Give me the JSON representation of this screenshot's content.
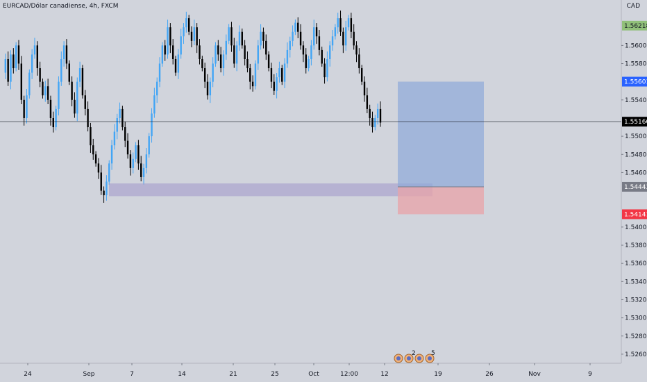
{
  "header": {
    "symbol_label": "EURCAD/Dólar canadiense, 4h, FXCM",
    "currency": "CAD"
  },
  "colors": {
    "background": "#d1d4dc",
    "axis_bg": "#d1d4dc",
    "candle_up_wick": "#42a5f5",
    "candle_down": "#000000",
    "price_line": "#131722",
    "target_box": "#8fa9d9",
    "stop_box": "#e8a3a8",
    "zone_box": "#a7a0cc",
    "label_green": "#91c07a",
    "label_blue": "#2962ff",
    "label_black": "#000000",
    "label_gray": "#787b86",
    "label_red": "#f23645"
  },
  "chart_data": {
    "type": "candlestick",
    "title": "EURCAD/Dólar canadiense, 4h, FXCM",
    "y_axis": {
      "ticks": [
        "1.56000",
        "1.55800",
        "1.55400",
        "1.55000",
        "1.54800",
        "1.54600",
        "1.54000",
        "1.53800",
        "1.53600",
        "1.53400",
        "1.53200",
        "1.53000",
        "1.52800",
        "1.52600"
      ],
      "ylim": [
        1.525,
        1.565
      ]
    },
    "x_axis": {
      "ticks": [
        "24",
        "Sep",
        "7",
        "14",
        "21",
        "25",
        "Oct",
        "12:00",
        "12",
        "19",
        "26",
        "Nov",
        "9"
      ]
    },
    "price_labels": [
      {
        "value": "1.56218",
        "kind": "green"
      },
      {
        "value": "1.55601",
        "kind": "blue"
      },
      {
        "value": "1.55160",
        "kind": "black"
      },
      {
        "value": "1.54443",
        "kind": "gray"
      },
      {
        "value": "1.54141",
        "kind": "red"
      }
    ],
    "current_price": 1.5516,
    "position": {
      "entry": 1.54443,
      "target": 1.55601,
      "stop": 1.54141
    },
    "zone": {
      "top": 1.5448,
      "bottom": 1.5434
    },
    "price_path": [
      1.557,
      1.5585,
      1.556,
      1.559,
      1.5575,
      1.56,
      1.558,
      1.554,
      1.552,
      1.5545,
      1.557,
      1.559,
      1.56,
      1.5575,
      1.556,
      1.5545,
      1.5555,
      1.554,
      1.552,
      1.551,
      1.553,
      1.556,
      1.5585,
      1.56,
      1.558,
      1.556,
      1.554,
      1.5525,
      1.556,
      1.5575,
      1.5545,
      1.553,
      1.551,
      1.549,
      1.548,
      1.547,
      1.546,
      1.544,
      1.5435,
      1.545,
      1.547,
      1.549,
      1.5505,
      1.552,
      1.553,
      1.551,
      1.5495,
      1.548,
      1.5465,
      1.5475,
      1.549,
      1.547,
      1.5455,
      1.5465,
      1.548,
      1.55,
      1.5525,
      1.5545,
      1.556,
      1.558,
      1.56,
      1.559,
      1.562,
      1.56,
      1.5585,
      1.557,
      1.559,
      1.561,
      1.562,
      1.563,
      1.5615,
      1.5605,
      1.562,
      1.56,
      1.5585,
      1.5575,
      1.556,
      1.5545,
      1.556,
      1.558,
      1.56,
      1.559,
      1.5575,
      1.559,
      1.5605,
      1.562,
      1.56,
      1.558,
      1.56,
      1.5615,
      1.56,
      1.5585,
      1.5575,
      1.556,
      1.5555,
      1.558,
      1.56,
      1.5615,
      1.5605,
      1.559,
      1.5575,
      1.556,
      1.555,
      1.5565,
      1.5575,
      1.556,
      1.558,
      1.5595,
      1.5605,
      1.5615,
      1.5625,
      1.5615,
      1.56,
      1.559,
      1.5575,
      1.5585,
      1.56,
      1.562,
      1.561,
      1.5595,
      1.558,
      1.5565,
      1.5585,
      1.56,
      1.561,
      1.562,
      1.563,
      1.5615,
      1.56,
      1.562,
      1.563,
      1.5615,
      1.56,
      1.559,
      1.5575,
      1.556,
      1.5545,
      1.553,
      1.552,
      1.551,
      1.552,
      1.553,
      1.5515
    ]
  },
  "indicators": {
    "badge_counts": [
      "2",
      "5"
    ]
  }
}
